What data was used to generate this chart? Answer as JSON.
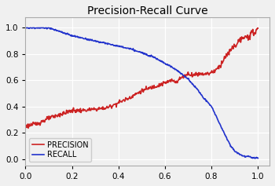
{
  "title": "Precision-Recall Curve",
  "xlim": [
    0.0,
    1.05
  ],
  "ylim": [
    -0.05,
    1.08
  ],
  "xticks": [
    0.0,
    0.2,
    0.4,
    0.6,
    0.8,
    1.0
  ],
  "yticks": [
    0.0,
    0.2,
    0.4,
    0.6,
    0.8,
    1.0
  ],
  "precision_color": "#cc2222",
  "recall_color": "#2233cc",
  "legend_labels": [
    "PRECISION",
    "RECALL"
  ],
  "bg_color": "#f0f0f0",
  "title_fontsize": 10,
  "tick_fontsize": 7.5,
  "legend_fontsize": 7,
  "precision_points_x": [
    0.0,
    0.05,
    0.1,
    0.15,
    0.2,
    0.25,
    0.3,
    0.35,
    0.4,
    0.45,
    0.5,
    0.55,
    0.6,
    0.63,
    0.65,
    0.67,
    0.7,
    0.72,
    0.74,
    0.76,
    0.78,
    0.8,
    0.82,
    0.84,
    0.86,
    0.87,
    0.88,
    0.89,
    0.9,
    0.91,
    0.92,
    0.93,
    0.94,
    0.95,
    0.96,
    0.97,
    0.98,
    0.99,
    1.0
  ],
  "precision_points_y": [
    0.25,
    0.27,
    0.31,
    0.34,
    0.37,
    0.37,
    0.38,
    0.39,
    0.43,
    0.47,
    0.52,
    0.55,
    0.58,
    0.6,
    0.59,
    0.62,
    0.65,
    0.64,
    0.65,
    0.65,
    0.65,
    0.66,
    0.68,
    0.72,
    0.78,
    0.8,
    0.82,
    0.85,
    0.86,
    0.88,
    0.9,
    0.92,
    0.91,
    0.93,
    0.94,
    0.95,
    0.96,
    0.97,
    1.0
  ],
  "recall_points_x": [
    0.0,
    0.05,
    0.1,
    0.15,
    0.2,
    0.25,
    0.3,
    0.35,
    0.4,
    0.45,
    0.5,
    0.55,
    0.6,
    0.63,
    0.65,
    0.67,
    0.7,
    0.72,
    0.74,
    0.76,
    0.78,
    0.8,
    0.82,
    0.84,
    0.86,
    0.88,
    0.9,
    0.92,
    0.94,
    0.96,
    0.98,
    1.0
  ],
  "recall_points_y": [
    1.0,
    1.0,
    1.0,
    0.97,
    0.94,
    0.92,
    0.9,
    0.88,
    0.86,
    0.84,
    0.81,
    0.78,
    0.73,
    0.7,
    0.68,
    0.65,
    0.61,
    0.57,
    0.53,
    0.48,
    0.44,
    0.4,
    0.33,
    0.25,
    0.18,
    0.11,
    0.06,
    0.04,
    0.02,
    0.02,
    0.01,
    0.01
  ]
}
